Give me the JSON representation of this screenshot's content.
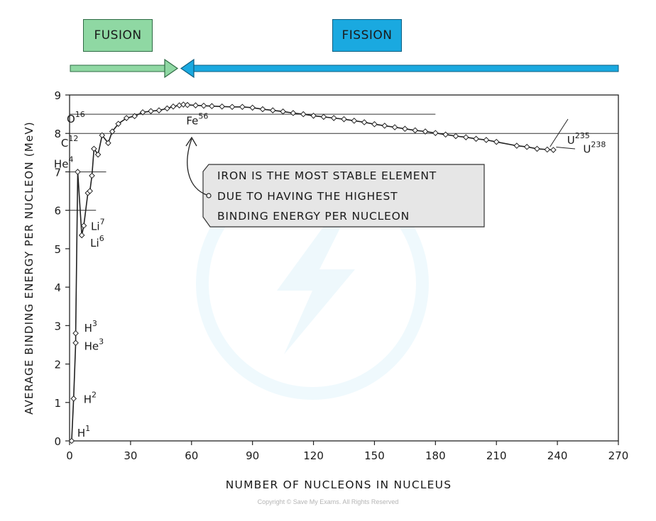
{
  "labels": {
    "fusion": "FUSION",
    "fission": "FISSION"
  },
  "colors": {
    "fusion": "#8fd8a3",
    "fission": "#1aa9e0",
    "curve": "#222222",
    "annotation_box": "#e6e6e6"
  },
  "annotation": {
    "lines": [
      "IRON IS THE MOST STABLE ELEMENT",
      "DUE TO HAVING THE HIGHEST",
      "BINDING ENERGY PER NUCLEON"
    ]
  },
  "copyright": "Copyright © Save My Exams. All Rights Reserved",
  "chart_data": {
    "type": "line",
    "xlabel": "NUMBER OF NUCLEONS IN NUCLEUS",
    "ylabel": "AVERAGE BINDING ENERGY PER NUCLEON (MeV)",
    "xlim": [
      0,
      270
    ],
    "ylim": [
      0,
      9
    ],
    "xticks": [
      0,
      30,
      60,
      90,
      120,
      150,
      180,
      210,
      240,
      270
    ],
    "yticks": [
      0,
      1,
      2,
      3,
      4,
      5,
      6,
      7,
      8,
      9
    ],
    "reference_lines": [
      {
        "y": 8.0,
        "x_from": 0,
        "x_to": 270
      },
      {
        "y": 8.5,
        "x_from": 0,
        "x_to": 180
      },
      {
        "y": 7.0,
        "x_from": 0,
        "x_to": 18
      },
      {
        "y": 6.0,
        "x_from": 0,
        "x_to": 13
      }
    ],
    "series": [
      {
        "points": [
          [
            1,
            0.0
          ],
          [
            2,
            1.1
          ],
          [
            3,
            2.55
          ],
          [
            3,
            2.8
          ],
          [
            4,
            7.0
          ],
          [
            6,
            5.35
          ],
          [
            7,
            5.6
          ],
          [
            9,
            6.45
          ],
          [
            10,
            6.5
          ],
          [
            11,
            6.9
          ],
          [
            12,
            7.6
          ],
          [
            14,
            7.45
          ],
          [
            16,
            7.95
          ],
          [
            19,
            7.75
          ],
          [
            21,
            8.05
          ],
          [
            24,
            8.25
          ],
          [
            28,
            8.4
          ],
          [
            32,
            8.45
          ],
          [
            36,
            8.55
          ],
          [
            40,
            8.58
          ],
          [
            44,
            8.6
          ],
          [
            48,
            8.65
          ],
          [
            51,
            8.7
          ],
          [
            54,
            8.73
          ],
          [
            56,
            8.75
          ],
          [
            58,
            8.74
          ],
          [
            62,
            8.73
          ],
          [
            66,
            8.72
          ],
          [
            70,
            8.71
          ],
          [
            75,
            8.7
          ],
          [
            80,
            8.69
          ],
          [
            85,
            8.69
          ],
          [
            90,
            8.67
          ],
          [
            95,
            8.63
          ],
          [
            100,
            8.6
          ],
          [
            105,
            8.57
          ],
          [
            110,
            8.53
          ],
          [
            115,
            8.5
          ],
          [
            120,
            8.46
          ],
          [
            125,
            8.43
          ],
          [
            130,
            8.4
          ],
          [
            135,
            8.37
          ],
          [
            140,
            8.33
          ],
          [
            145,
            8.29
          ],
          [
            150,
            8.24
          ],
          [
            155,
            8.2
          ],
          [
            160,
            8.16
          ],
          [
            165,
            8.12
          ],
          [
            170,
            8.08
          ],
          [
            175,
            8.05
          ],
          [
            180,
            8.01
          ],
          [
            185,
            7.97
          ],
          [
            190,
            7.93
          ],
          [
            195,
            7.9
          ],
          [
            200,
            7.86
          ],
          [
            205,
            7.83
          ],
          [
            210,
            7.78
          ],
          [
            220,
            7.68
          ],
          [
            225,
            7.65
          ],
          [
            230,
            7.6
          ],
          [
            235,
            7.58
          ],
          [
            238,
            7.57
          ]
        ]
      }
    ],
    "annotations": [
      {
        "label": "H",
        "sup": "1",
        "x": 1,
        "y": 0.0
      },
      {
        "label": "H",
        "sup": "2",
        "x": 2,
        "y": 1.1
      },
      {
        "label": "He",
        "sup": "3",
        "x": 3,
        "y": 2.55
      },
      {
        "label": "H",
        "sup": "3",
        "x": 3,
        "y": 2.8
      },
      {
        "label": "He",
        "sup": "4",
        "x": 4,
        "y": 7.0
      },
      {
        "label": "Li",
        "sup": "6",
        "x": 6,
        "y": 5.35
      },
      {
        "label": "Li",
        "sup": "7",
        "x": 7,
        "y": 5.6
      },
      {
        "label": "C",
        "sup": "12",
        "x": 12,
        "y": 7.6
      },
      {
        "label": "O",
        "sup": "16",
        "x": 16,
        "y": 7.95
      },
      {
        "label": "Fe",
        "sup": "56",
        "x": 56,
        "y": 8.75
      },
      {
        "label": "U",
        "sup": "235",
        "x": 235,
        "y": 7.58
      },
      {
        "label": "U",
        "sup": "238",
        "x": 238,
        "y": 7.57
      }
    ]
  }
}
